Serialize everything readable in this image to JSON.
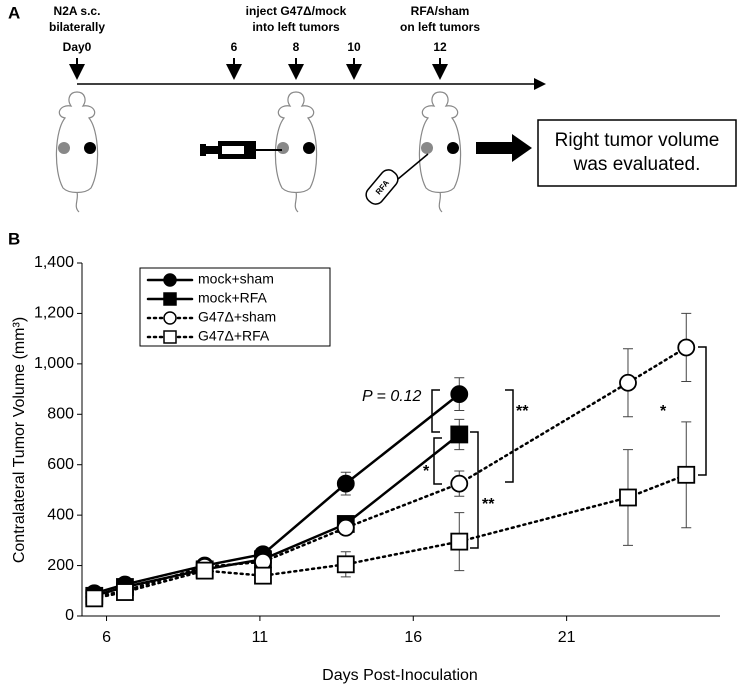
{
  "panel_a": {
    "label": "A",
    "steps": [
      {
        "lines": [
          "N2A s.c.",
          "bilaterally"
        ],
        "day": "Day0"
      },
      {
        "day": "6"
      },
      {
        "lines": [
          "inject G47Δ/mock",
          "into left tumors"
        ],
        "day": "8"
      },
      {
        "day": "10"
      },
      {
        "lines": [
          "RFA/sham",
          "on left tumors"
        ],
        "day": "12"
      }
    ],
    "probe": "RFA",
    "result": [
      "Right tumor volume",
      "was evaluated."
    ]
  },
  "chart_data": {
    "type": "line",
    "panel_label": "B",
    "x_label": "Days Post-Inoculation",
    "y_label": "Contralateral Tumor Volume (mm³)",
    "x": [
      5.6,
      6.6,
      9.2,
      11.1,
      13.8,
      17.5,
      23.0,
      24.9
    ],
    "xlim": [
      5.2,
      26
    ],
    "xticks": [
      6,
      11,
      16,
      21
    ],
    "ylim": [
      0,
      1400
    ],
    "yticks": [
      0,
      200,
      400,
      600,
      800,
      {
        "value": 1000,
        "label": "1,000"
      },
      {
        "value": 1200,
        "label": "1,200"
      },
      {
        "value": 1400,
        "label": "1,400"
      }
    ],
    "series": [
      {
        "name": "mock+sham",
        "color": "#000000",
        "dash": "solid",
        "marker": "circle",
        "filled": true,
        "values": [
          90,
          125,
          200,
          245,
          525,
          880,
          null,
          null
        ],
        "errors": [
          10,
          10,
          10,
          15,
          45,
          65,
          null,
          null
        ]
      },
      {
        "name": "mock+RFA",
        "color": "#000000",
        "dash": "solid",
        "marker": "square",
        "filled": true,
        "values": [
          80,
          115,
          185,
          225,
          365,
          720,
          null,
          null
        ],
        "errors": [
          10,
          10,
          10,
          15,
          25,
          60,
          null,
          null
        ]
      },
      {
        "name": "G47Δ+sham",
        "color": "#000000",
        "dash": "dotted",
        "marker": "circle",
        "filled": false,
        "values": [
          75,
          100,
          195,
          215,
          350,
          525,
          925,
          1065
        ],
        "errors": [
          10,
          10,
          10,
          15,
          20,
          50,
          135,
          135
        ]
      },
      {
        "name": "G47Δ+RFA",
        "color": "#000000",
        "dash": "dotted",
        "marker": "square",
        "filled": false,
        "values": [
          70,
          95,
          180,
          160,
          205,
          295,
          470,
          560
        ],
        "errors": [
          10,
          10,
          10,
          30,
          50,
          115,
          190,
          210
        ]
      }
    ],
    "annotations": [
      "P = 0.12",
      "**",
      "*",
      "**",
      "*"
    ]
  }
}
